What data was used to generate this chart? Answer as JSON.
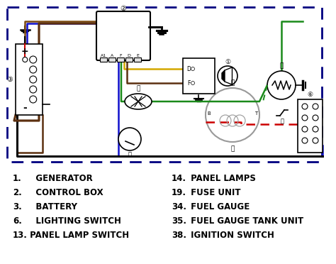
{
  "bg_color": "#ffffff",
  "legend_left": [
    [
      "1.",
      "   GENERATOR"
    ],
    [
      "2.",
      "   CONTROL BOX"
    ],
    [
      "3.",
      "   BATTERY"
    ],
    [
      "6.",
      "   LIGHTING SWITCH"
    ],
    [
      "13.",
      " PANEL LAMP SWITCH"
    ]
  ],
  "legend_right": [
    [
      "14.",
      " PANEL LAMPS"
    ],
    [
      "19.",
      " FUSE UNIT"
    ],
    [
      "34.",
      " FUEL GAUGE"
    ],
    [
      "35.",
      " FUEL GAUGE TANK UNIT"
    ],
    [
      "38.",
      " IGNITION SWITCH"
    ]
  ],
  "brown": "#7B4A10",
  "blue": "#1010CC",
  "green": "#1A8A1A",
  "yellow": "#D4A800",
  "red": "#CC0000",
  "black": "#000000",
  "gray": "#999999",
  "darkbrown": "#5C3010",
  "border_color": "#000080",
  "diagram_border": [
    10,
    10,
    454,
    225
  ]
}
